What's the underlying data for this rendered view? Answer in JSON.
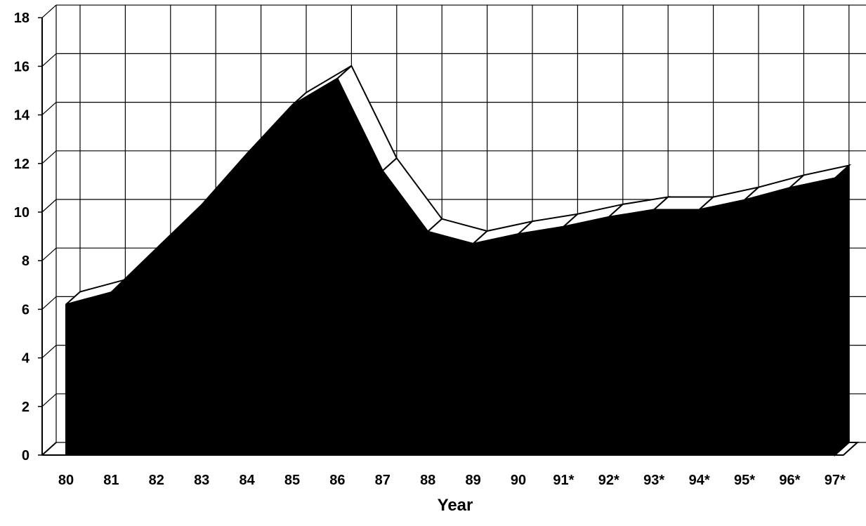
{
  "chart_data": {
    "type": "area",
    "categories": [
      "80",
      "81",
      "82",
      "83",
      "84",
      "85",
      "86",
      "87",
      "88",
      "89",
      "90",
      "91*",
      "92*",
      "93*",
      "94*",
      "95*",
      "96*",
      "97*"
    ],
    "values": [
      6.2,
      6.7,
      8.5,
      10.3,
      12.4,
      14.4,
      15.5,
      11.7,
      9.2,
      8.7,
      9.1,
      9.4,
      9.8,
      10.1,
      10.1,
      10.5,
      11.0,
      11.4
    ],
    "xlabel": "Year",
    "ylabel": "",
    "ylim": [
      0,
      18
    ],
    "yticks": [
      "0",
      "2",
      "4",
      "6",
      "8",
      "10",
      "12",
      "14",
      "16",
      "18"
    ],
    "grid": true,
    "style": "3d-area",
    "colors": {
      "fill": "#000000",
      "top_edge": "#ffffff",
      "grid": "#000000"
    }
  }
}
